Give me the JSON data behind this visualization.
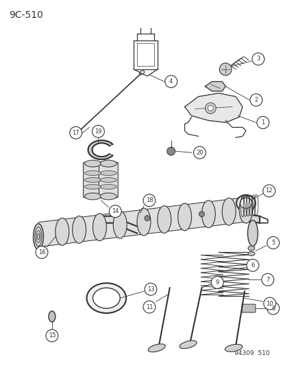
{
  "title": "9C-510",
  "watermark": "94309  510",
  "bg_color": "#ffffff",
  "line_color": "#333333",
  "fig_w": 4.14,
  "fig_h": 5.33,
  "dpi": 100
}
